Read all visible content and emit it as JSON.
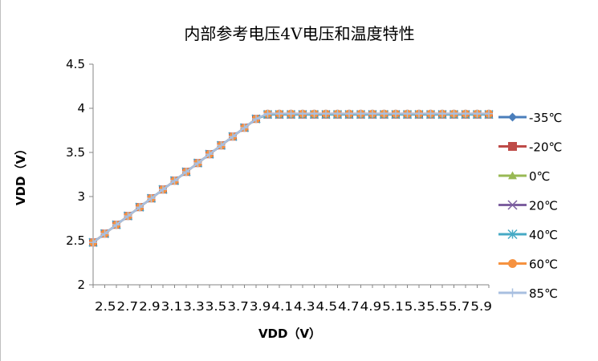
{
  "chart_data": {
    "type": "line",
    "title": "内部参考电压4V电压和温度特性",
    "xlabel": "VDD（V）",
    "ylabel": "VDD（V）",
    "ylim": [
      2,
      4.5
    ],
    "yticks": [
      "2",
      "2.5",
      "3",
      "3.5",
      "4",
      "4.5"
    ],
    "grid": false,
    "legend_position": "right",
    "x": [
      2.5,
      2.6,
      2.7,
      2.8,
      2.9,
      3.0,
      3.1,
      3.2,
      3.3,
      3.4,
      3.5,
      3.6,
      3.7,
      3.8,
      3.9,
      4.0,
      4.1,
      4.2,
      4.3,
      4.4,
      4.5,
      4.6,
      4.7,
      4.8,
      4.9,
      5.0,
      5.1,
      5.2,
      5.3,
      5.4,
      5.5,
      5.6,
      5.7,
      5.8,
      5.9
    ],
    "xtick_labels": [
      "2.5",
      "2.7",
      "2.9",
      "3.1",
      "3.3",
      "3.5",
      "3.7",
      "3.9",
      "4.1",
      "4.3",
      "4.5",
      "4.7",
      "4.9",
      "5.1",
      "5.3",
      "5.5",
      "5.7",
      "5.9"
    ],
    "series": [
      {
        "name": "-35℃",
        "color": "#4a7ebb",
        "marker": "diamond",
        "values": [
          2.48,
          2.58,
          2.68,
          2.78,
          2.88,
          2.98,
          3.08,
          3.18,
          3.28,
          3.38,
          3.48,
          3.58,
          3.68,
          3.78,
          3.88,
          3.93,
          3.93,
          3.93,
          3.93,
          3.93,
          3.93,
          3.93,
          3.93,
          3.93,
          3.93,
          3.93,
          3.93,
          3.93,
          3.93,
          3.93,
          3.93,
          3.93,
          3.93,
          3.93,
          3.93
        ]
      },
      {
        "name": "-20℃",
        "color": "#be4b48",
        "marker": "square",
        "values": [
          2.48,
          2.58,
          2.68,
          2.78,
          2.88,
          2.98,
          3.08,
          3.18,
          3.28,
          3.38,
          3.48,
          3.58,
          3.68,
          3.78,
          3.88,
          3.93,
          3.93,
          3.93,
          3.93,
          3.93,
          3.93,
          3.93,
          3.93,
          3.93,
          3.93,
          3.93,
          3.93,
          3.93,
          3.93,
          3.93,
          3.93,
          3.93,
          3.93,
          3.93,
          3.93
        ]
      },
      {
        "name": "0℃",
        "color": "#98b954",
        "marker": "triangle",
        "values": [
          2.48,
          2.58,
          2.68,
          2.78,
          2.88,
          2.98,
          3.08,
          3.18,
          3.28,
          3.38,
          3.48,
          3.58,
          3.68,
          3.78,
          3.88,
          3.93,
          3.93,
          3.93,
          3.93,
          3.93,
          3.93,
          3.93,
          3.93,
          3.93,
          3.93,
          3.93,
          3.93,
          3.93,
          3.93,
          3.93,
          3.93,
          3.93,
          3.93,
          3.93,
          3.93
        ]
      },
      {
        "name": "20℃",
        "color": "#7d60a0",
        "marker": "x",
        "values": [
          2.48,
          2.58,
          2.68,
          2.78,
          2.88,
          2.98,
          3.08,
          3.18,
          3.28,
          3.38,
          3.48,
          3.58,
          3.68,
          3.78,
          3.88,
          3.93,
          3.93,
          3.93,
          3.93,
          3.93,
          3.93,
          3.93,
          3.93,
          3.93,
          3.93,
          3.93,
          3.93,
          3.93,
          3.93,
          3.93,
          3.93,
          3.93,
          3.93,
          3.93,
          3.93
        ]
      },
      {
        "name": "40℃",
        "color": "#46aac5",
        "marker": "star",
        "values": [
          2.48,
          2.58,
          2.68,
          2.78,
          2.88,
          2.98,
          3.08,
          3.18,
          3.28,
          3.38,
          3.48,
          3.58,
          3.68,
          3.78,
          3.88,
          3.93,
          3.93,
          3.93,
          3.93,
          3.93,
          3.93,
          3.93,
          3.93,
          3.93,
          3.93,
          3.93,
          3.93,
          3.93,
          3.93,
          3.93,
          3.93,
          3.93,
          3.93,
          3.93,
          3.93
        ]
      },
      {
        "name": "60℃",
        "color": "#f69240",
        "marker": "circle",
        "values": [
          2.48,
          2.58,
          2.68,
          2.78,
          2.88,
          2.98,
          3.08,
          3.18,
          3.28,
          3.38,
          3.48,
          3.58,
          3.68,
          3.78,
          3.88,
          3.94,
          3.94,
          3.94,
          3.94,
          3.94,
          3.94,
          3.94,
          3.94,
          3.94,
          3.94,
          3.94,
          3.94,
          3.94,
          3.94,
          3.94,
          3.94,
          3.94,
          3.94,
          3.94,
          3.94
        ]
      },
      {
        "name": "85℃",
        "color": "#a8bfe0",
        "marker": "plus",
        "values": [
          2.48,
          2.58,
          2.68,
          2.78,
          2.88,
          2.98,
          3.08,
          3.18,
          3.28,
          3.38,
          3.48,
          3.58,
          3.68,
          3.78,
          3.88,
          3.94,
          3.94,
          3.94,
          3.94,
          3.94,
          3.94,
          3.94,
          3.94,
          3.94,
          3.94,
          3.94,
          3.94,
          3.94,
          3.94,
          3.94,
          3.94,
          3.94,
          3.94,
          3.94,
          3.94
        ]
      }
    ]
  }
}
